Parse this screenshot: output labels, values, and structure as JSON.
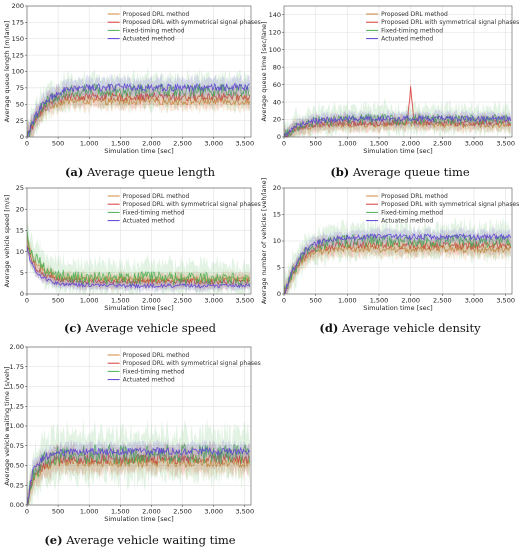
{
  "colors": {
    "proposed": "#d4893a",
    "symmetric": "#d93a3a",
    "fixed": "#4caf50",
    "actuated": "#5b3fd1"
  },
  "chart_data": [
    {
      "type": "line",
      "panel": "a",
      "caption_letter": "(a)",
      "caption": "Average queue length",
      "xlabel": "Simulation time [sec]",
      "ylabel": "Average queue length [m/lane]",
      "xlim": [
        0,
        3600
      ],
      "ylim": [
        0,
        200
      ],
      "xticks": [
        0,
        500,
        1000,
        1500,
        2000,
        2500,
        3000,
        3500
      ],
      "xtick_labels": [
        "0",
        "500",
        "1,000",
        "1,500",
        "2,000",
        "2,500",
        "3,000",
        "3,500"
      ],
      "yticks": [
        0,
        25,
        50,
        75,
        100,
        125,
        150,
        175,
        200
      ],
      "ytick_labels": [
        "0",
        "25",
        "50",
        "75",
        "100",
        "125",
        "150",
        "175",
        "200"
      ],
      "grid": true,
      "legend": "top-center",
      "series": [
        {
          "name": "Proposed DRL method",
          "colorKey": "proposed",
          "x": [
            0,
            150,
            300,
            500,
            700,
            1000,
            1500,
            2000,
            2500,
            3000,
            3500
          ],
          "y": [
            0,
            28,
            44,
            52,
            55,
            55,
            54,
            55,
            54,
            55,
            54
          ],
          "band": 12
        },
        {
          "name": "Proposed DRL with symmetrical signal phases",
          "colorKey": "symmetric",
          "x": [
            0,
            150,
            300,
            500,
            700,
            1000,
            1500,
            2000,
            2500,
            3000,
            3500
          ],
          "y": [
            0,
            30,
            48,
            58,
            62,
            62,
            61,
            62,
            61,
            62,
            61
          ],
          "band": 14
        },
        {
          "name": "Fixed-timing method",
          "colorKey": "fixed",
          "x": [
            0,
            150,
            300,
            500,
            700,
            1000,
            1500,
            2000,
            2500,
            3000,
            3500
          ],
          "y": [
            0,
            33,
            52,
            64,
            70,
            72,
            71,
            72,
            71,
            72,
            71
          ],
          "band": 22
        },
        {
          "name": "Actuated method",
          "colorKey": "actuated",
          "x": [
            0,
            150,
            300,
            500,
            700,
            1000,
            1500,
            2000,
            2500,
            3000,
            3500
          ],
          "y": [
            0,
            34,
            55,
            68,
            74,
            76,
            76,
            76,
            75,
            76,
            76
          ],
          "band": 13
        }
      ]
    },
    {
      "type": "line",
      "panel": "b",
      "caption_letter": "(b)",
      "caption": "Average queue time",
      "xlabel": "Simulation time [sec]",
      "ylabel": "Average queue time [sec/lane]",
      "xlim": [
        0,
        3600
      ],
      "ylim": [
        0,
        150
      ],
      "xticks": [
        0,
        500,
        1000,
        1500,
        2000,
        2500,
        3000,
        3500
      ],
      "xtick_labels": [
        "0",
        "500",
        "1,000",
        "1,500",
        "2,000",
        "2,500",
        "3,000",
        "3,500"
      ],
      "yticks": [
        0,
        20,
        40,
        60,
        80,
        100,
        120,
        140
      ],
      "ytick_labels": [
        "0",
        "20",
        "40",
        "60",
        "80",
        "100",
        "120",
        "140"
      ],
      "grid": true,
      "legend": "top-center",
      "series": [
        {
          "name": "Proposed DRL method",
          "colorKey": "proposed",
          "x": [
            0,
            200,
            500,
            1000,
            1500,
            2000,
            2500,
            3000,
            3500
          ],
          "y": [
            0,
            9,
            13,
            14,
            14,
            15,
            14,
            14,
            14
          ],
          "band": 7
        },
        {
          "name": "Proposed DRL with symmetrical signal phases",
          "colorKey": "symmetric",
          "x": [
            0,
            200,
            500,
            1000,
            1500,
            1950,
            2000,
            2050,
            2500,
            3000,
            3500
          ],
          "y": [
            0,
            10,
            15,
            16,
            16,
            17,
            58,
            18,
            16,
            16,
            16
          ],
          "band": 8
        },
        {
          "name": "Fixed-timing method",
          "colorKey": "fixed",
          "x": [
            0,
            200,
            500,
            1000,
            1500,
            2000,
            2500,
            3000,
            3500
          ],
          "y": [
            0,
            12,
            18,
            20,
            20,
            20,
            20,
            20,
            20
          ],
          "band": 14
        },
        {
          "name": "Actuated method",
          "colorKey": "actuated",
          "x": [
            0,
            200,
            500,
            1000,
            1500,
            2000,
            2500,
            3000,
            3500
          ],
          "y": [
            0,
            13,
            19,
            21,
            21,
            21,
            21,
            21,
            21
          ],
          "band": 7
        }
      ]
    },
    {
      "type": "line",
      "panel": "c",
      "caption_letter": "(c)",
      "caption": "Average vehicle speed",
      "xlabel": "Simulation time [sec]",
      "ylabel": "Average vehicle speed [m/s]",
      "xlim": [
        0,
        3600
      ],
      "ylim": [
        0,
        25
      ],
      "xticks": [
        0,
        500,
        1000,
        1500,
        2000,
        2500,
        3000,
        3500
      ],
      "xtick_labels": [
        "0",
        "500",
        "1,000",
        "1,500",
        "2,000",
        "2,500",
        "3,000",
        "3,500"
      ],
      "yticks": [
        0,
        5,
        10,
        15,
        20,
        25
      ],
      "ytick_labels": [
        "0",
        "5",
        "10",
        "15",
        "20",
        "25"
      ],
      "grid": true,
      "legend": "top-center",
      "series": [
        {
          "name": "Proposed DRL method",
          "colorKey": "proposed",
          "x": [
            0,
            50,
            150,
            300,
            500,
            800,
            1000,
            1500,
            2000,
            2500,
            3000,
            3500
          ],
          "y": [
            13,
            10,
            7,
            5,
            4,
            3.6,
            3.5,
            3.5,
            3.4,
            3.5,
            3.4,
            3.5
          ],
          "band": 1.5
        },
        {
          "name": "Proposed DRL with symmetrical signal phases",
          "colorKey": "symmetric",
          "x": [
            0,
            50,
            150,
            300,
            500,
            800,
            1000,
            1500,
            2000,
            2500,
            3000,
            3500
          ],
          "y": [
            12,
            9,
            6,
            4.5,
            3.5,
            3.1,
            3,
            3,
            2.9,
            3,
            2.9,
            3
          ],
          "band": 1.5
        },
        {
          "name": "Fixed-timing method",
          "colorKey": "fixed",
          "x": [
            0,
            50,
            150,
            300,
            500,
            800,
            1000,
            1500,
            2000,
            2500,
            3000,
            3500
          ],
          "y": [
            14,
            11,
            8,
            6,
            4.5,
            3.8,
            3.6,
            3.5,
            3.8,
            3.6,
            3.5,
            3.4
          ],
          "band": 3.5
        },
        {
          "name": "Actuated method",
          "colorKey": "actuated",
          "x": [
            0,
            50,
            150,
            300,
            500,
            800,
            1000,
            1500,
            2000,
            2500,
            3000,
            3500
          ],
          "y": [
            11,
            8,
            5,
            3.5,
            2.5,
            2.2,
            2,
            2,
            1.9,
            2,
            1.9,
            2
          ],
          "band": 1.0
        }
      ]
    },
    {
      "type": "line",
      "panel": "d",
      "caption_letter": "(d)",
      "caption": "Average vehicle density",
      "xlabel": "Simulation time [sec]",
      "ylabel": "Average number of vehicles [veh/lane]",
      "xlim": [
        0,
        3600
      ],
      "ylim": [
        0,
        20
      ],
      "xticks": [
        0,
        500,
        1000,
        1500,
        2000,
        2500,
        3000,
        3500
      ],
      "xtick_labels": [
        "0",
        "500",
        "1,000",
        "1,500",
        "2,000",
        "2,500",
        "3,000",
        "3,500"
      ],
      "yticks": [
        0,
        5,
        10,
        15,
        20
      ],
      "ytick_labels": [
        "0",
        "5",
        "10",
        "15",
        "20"
      ],
      "grid": true,
      "legend": "top-center",
      "series": [
        {
          "name": "Proposed DRL method",
          "colorKey": "proposed",
          "x": [
            0,
            150,
            300,
            500,
            700,
            1000,
            1500,
            2000,
            2500,
            3000,
            3500
          ],
          "y": [
            0,
            4,
            6.5,
            7.8,
            8.3,
            8.5,
            8.5,
            8.4,
            8.5,
            8.4,
            8.5
          ],
          "band": 1.5
        },
        {
          "name": "Proposed DRL with symmetrical signal phases",
          "colorKey": "symmetric",
          "x": [
            0,
            150,
            300,
            500,
            700,
            1000,
            1500,
            2000,
            2500,
            3000,
            3500
          ],
          "y": [
            0,
            4.3,
            7,
            8.5,
            9,
            9.2,
            9.2,
            9.1,
            9.2,
            9.1,
            9.2
          ],
          "band": 1.6
        },
        {
          "name": "Fixed-timing method",
          "colorKey": "fixed",
          "x": [
            0,
            150,
            300,
            500,
            700,
            1000,
            1500,
            2000,
            2500,
            3000,
            3500
          ],
          "y": [
            0,
            4.6,
            7.5,
            9,
            9.8,
            10,
            10,
            10,
            10,
            10,
            10
          ],
          "band": 2.8
        },
        {
          "name": "Actuated method",
          "colorKey": "actuated",
          "x": [
            0,
            150,
            300,
            500,
            700,
            1000,
            1500,
            2000,
            2500,
            3000,
            3500
          ],
          "y": [
            0,
            4.8,
            7.8,
            9.5,
            10.3,
            10.7,
            10.8,
            10.8,
            10.8,
            10.8,
            10.8
          ],
          "band": 1.2
        }
      ]
    },
    {
      "type": "line",
      "panel": "e",
      "caption_letter": "(e)",
      "caption": "Average vehicle waiting time",
      "xlabel": "Simulation time [sec]",
      "ylabel": "Average vehicle waiting time [s/veh]",
      "xlim": [
        0,
        3600
      ],
      "ylim": [
        0,
        2
      ],
      "xticks": [
        0,
        500,
        1000,
        1500,
        2000,
        2500,
        3000,
        3500
      ],
      "xtick_labels": [
        "0",
        "500",
        "1,000",
        "1,500",
        "2,000",
        "2,500",
        "3,000",
        "3,500"
      ],
      "yticks": [
        0,
        0.25,
        0.5,
        0.75,
        1.0,
        1.25,
        1.5,
        1.75,
        2.0
      ],
      "ytick_labels": [
        "0.00",
        "0.25",
        "0.50",
        "0.75",
        "1.00",
        "1.25",
        "1.50",
        "1.75",
        "2.00"
      ],
      "grid": true,
      "legend": "top-center",
      "series": [
        {
          "name": "Proposed DRL method",
          "colorKey": "proposed",
          "x": [
            0,
            100,
            300,
            500,
            800,
            1000,
            1500,
            2000,
            2500,
            3000,
            3500
          ],
          "y": [
            0,
            0.35,
            0.5,
            0.53,
            0.54,
            0.54,
            0.54,
            0.54,
            0.54,
            0.54,
            0.54
          ],
          "band": 0.14
        },
        {
          "name": "Proposed DRL with symmetrical signal phases",
          "colorKey": "symmetric",
          "x": [
            0,
            100,
            300,
            500,
            800,
            1000,
            1500,
            2000,
            2500,
            3000,
            3500
          ],
          "y": [
            0,
            0.37,
            0.53,
            0.57,
            0.58,
            0.58,
            0.58,
            0.58,
            0.58,
            0.58,
            0.58
          ],
          "band": 0.15
        },
        {
          "name": "Fixed-timing method",
          "colorKey": "fixed",
          "x": [
            0,
            100,
            300,
            500,
            800,
            1000,
            1500,
            2000,
            2500,
            3000,
            3500
          ],
          "y": [
            0,
            0.4,
            0.58,
            0.62,
            0.63,
            0.64,
            0.64,
            0.64,
            0.64,
            0.64,
            0.64
          ],
          "band": 0.28
        },
        {
          "name": "Actuated method",
          "colorKey": "actuated",
          "x": [
            0,
            100,
            300,
            500,
            800,
            1000,
            1500,
            2000,
            2500,
            3000,
            3500
          ],
          "y": [
            0,
            0.45,
            0.62,
            0.66,
            0.67,
            0.68,
            0.68,
            0.68,
            0.68,
            0.68,
            0.68
          ],
          "band": 0.1
        }
      ]
    }
  ]
}
